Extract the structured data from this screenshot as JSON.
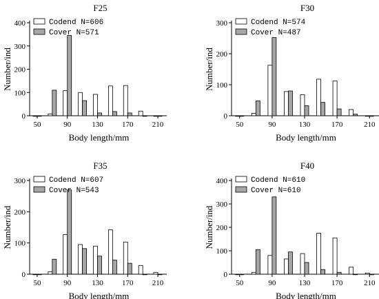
{
  "colors": {
    "codend": "#ffffff",
    "cover": "#a6a6a6",
    "stroke": "#000000"
  },
  "chart_data": [
    {
      "type": "bar",
      "title": "F25",
      "xlabel": "Body length/mm",
      "ylabel": "Number/ind",
      "xlim": [
        40,
        220
      ],
      "ylim": [
        0,
        400
      ],
      "xticks": [
        "50",
        "90",
        "130",
        "170",
        "210"
      ],
      "yticks": [
        "0",
        "100",
        "200",
        "300",
        "400"
      ],
      "legend": [
        {
          "name": "Codend N=606"
        },
        {
          "name": "Cover N=571"
        }
      ],
      "series": [
        {
          "name": "Codend",
          "x": [
            50,
            70,
            90,
            110,
            130,
            150,
            170,
            190,
            210
          ],
          "values": [
            0,
            8,
            108,
            100,
            92,
            128,
            130,
            20,
            0
          ]
        },
        {
          "name": "Cover",
          "x": [
            50,
            70,
            90,
            110,
            130,
            150,
            170,
            190,
            210
          ],
          "values": [
            0,
            110,
            345,
            65,
            12,
            18,
            12,
            0,
            0
          ]
        }
      ]
    },
    {
      "type": "bar",
      "title": "F30",
      "xlabel": "Body length/mm",
      "ylabel": "Number/ind",
      "xlim": [
        40,
        220
      ],
      "ylim": [
        0,
        300
      ],
      "xticks": [
        "50",
        "90",
        "130",
        "170",
        "210"
      ],
      "yticks": [
        "0",
        "100",
        "200",
        "300"
      ],
      "legend": [
        {
          "name": "Codend N=574"
        },
        {
          "name": "Cover N=487"
        }
      ],
      "series": [
        {
          "name": "Codend",
          "x": [
            50,
            70,
            90,
            110,
            130,
            150,
            170,
            190,
            210
          ],
          "values": [
            0,
            8,
            163,
            78,
            68,
            118,
            112,
            20,
            0
          ]
        },
        {
          "name": "Cover",
          "x": [
            50,
            70,
            90,
            110,
            130,
            150,
            170,
            190,
            210
          ],
          "values": [
            0,
            48,
            252,
            80,
            32,
            43,
            22,
            5,
            0
          ]
        }
      ]
    },
    {
      "type": "bar",
      "title": "F35",
      "xlabel": "Body length/mm",
      "ylabel": "Number/ind",
      "xlim": [
        40,
        220
      ],
      "ylim": [
        0,
        300
      ],
      "xticks": [
        "50",
        "90",
        "130",
        "170",
        "210"
      ],
      "yticks": [
        "0",
        "100",
        "200",
        "300"
      ],
      "legend": [
        {
          "name": "Codend N=607"
        },
        {
          "name": "Cover N=543"
        }
      ],
      "series": [
        {
          "name": "Codend",
          "x": [
            50,
            70,
            90,
            110,
            130,
            150,
            170,
            190,
            210
          ],
          "values": [
            0,
            8,
            127,
            95,
            90,
            142,
            103,
            28,
            6
          ]
        },
        {
          "name": "Cover",
          "x": [
            50,
            70,
            90,
            110,
            130,
            150,
            170,
            190,
            210
          ],
          "values": [
            0,
            48,
            270,
            82,
            58,
            45,
            35,
            0,
            0
          ]
        }
      ]
    },
    {
      "type": "bar",
      "title": "F40",
      "xlabel": "Body length/mm",
      "ylabel": "Number/ind",
      "xlim": [
        40,
        220
      ],
      "ylim": [
        0,
        400
      ],
      "xticks": [
        "50",
        "90",
        "130",
        "170",
        "210"
      ],
      "yticks": [
        "0",
        "100",
        "200",
        "300",
        "400"
      ],
      "legend": [
        {
          "name": "Codend N=610"
        },
        {
          "name": "Cover N=610"
        }
      ],
      "series": [
        {
          "name": "Codend",
          "x": [
            50,
            70,
            90,
            110,
            130,
            150,
            170,
            190,
            210
          ],
          "values": [
            0,
            8,
            80,
            65,
            88,
            175,
            155,
            30,
            5
          ]
        },
        {
          "name": "Cover",
          "x": [
            50,
            70,
            90,
            110,
            130,
            150,
            170,
            190,
            210
          ],
          "values": [
            0,
            105,
            330,
            95,
            50,
            20,
            8,
            0,
            0
          ]
        }
      ]
    }
  ]
}
